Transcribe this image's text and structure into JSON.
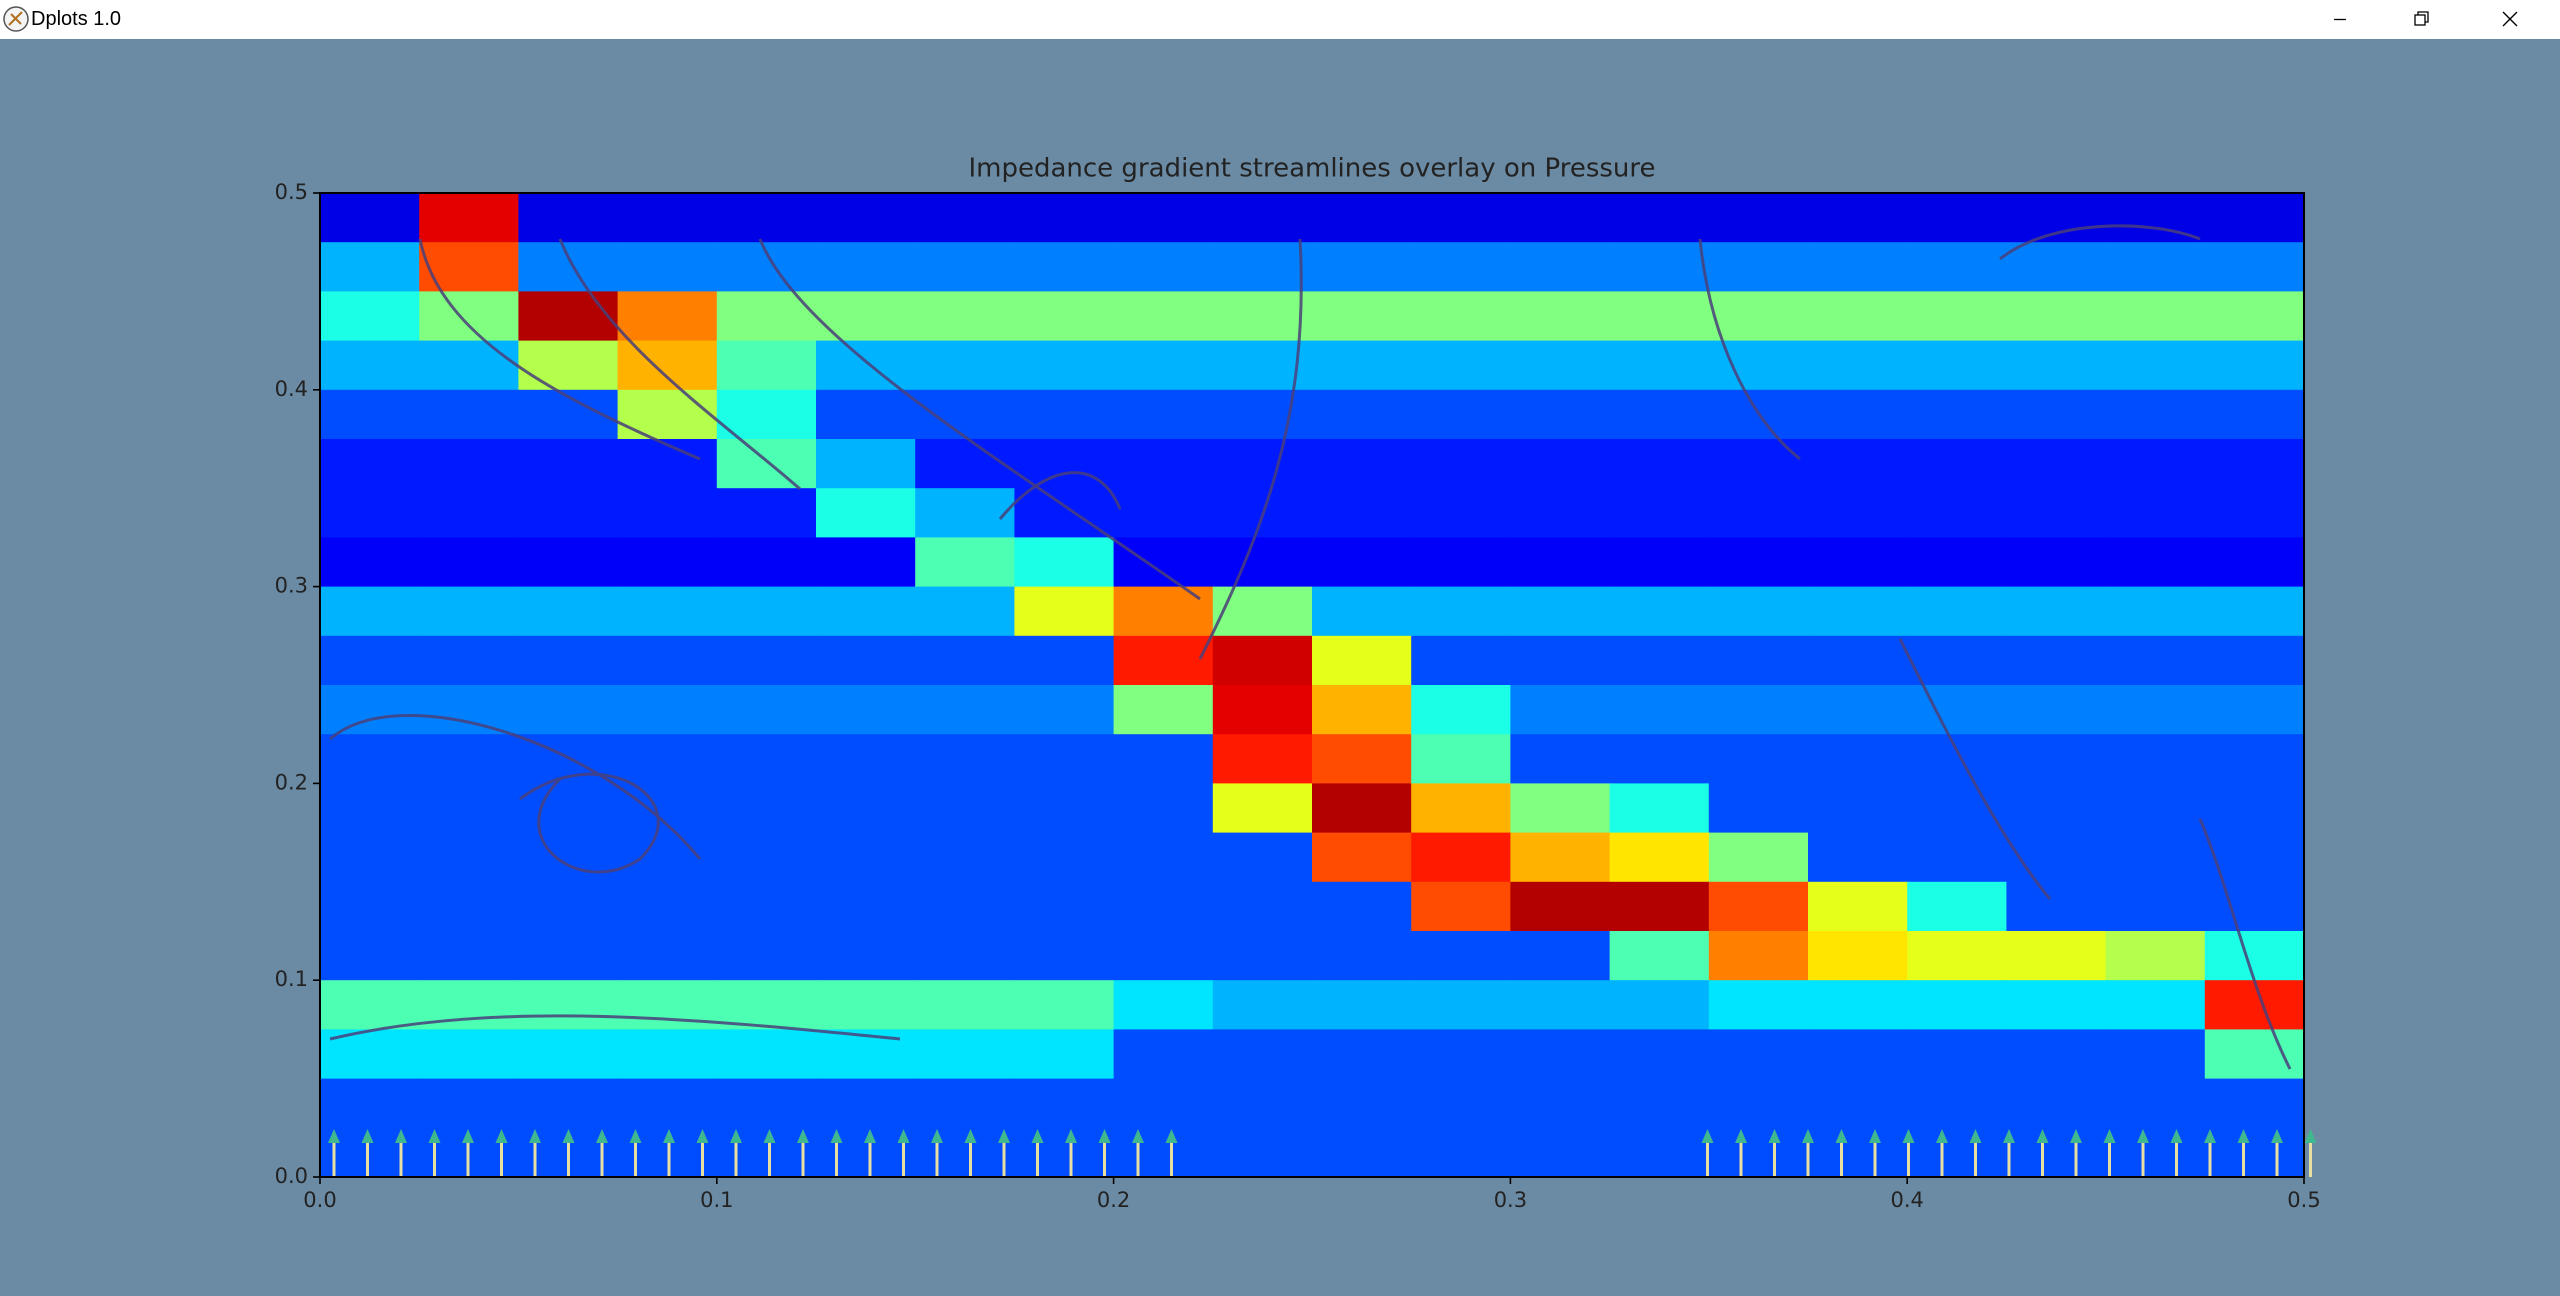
{
  "window": {
    "title": "Dplots 1.0"
  },
  "chart_data": {
    "type": "heatmap",
    "title": "Impedance gradient streamlines overlay on Pressure",
    "xlim": [
      0,
      0.5
    ],
    "ylim": [
      0,
      0.5
    ],
    "xticks": [
      {
        "value": 0,
        "label": "0.0"
      },
      0.1,
      0.2,
      0.3,
      0.4,
      0.5
    ],
    "yticks": [
      {
        "value": 0,
        "label": "0.0"
      },
      0.1,
      0.2,
      0.3,
      0.4,
      0.5
    ],
    "colormap": "jet",
    "z": [
      [
        0.1,
        0.9,
        0.1,
        0.1,
        0.1,
        0.1,
        0.1,
        0.1,
        0.1,
        0.1,
        0.1,
        0.1,
        0.1,
        0.1,
        0.1,
        0.1,
        0.1,
        0.1,
        0.1,
        0.1
      ],
      [
        0.3,
        0.8,
        0.25,
        0.25,
        0.25,
        0.25,
        0.25,
        0.25,
        0.25,
        0.25,
        0.25,
        0.25,
        0.25,
        0.25,
        0.25,
        0.25,
        0.25,
        0.25,
        0.25,
        0.25
      ],
      [
        0.4,
        0.5,
        0.95,
        0.75,
        0.5,
        0.5,
        0.5,
        0.5,
        0.5,
        0.5,
        0.5,
        0.5,
        0.5,
        0.5,
        0.5,
        0.5,
        0.5,
        0.5,
        0.5,
        0.5
      ],
      [
        0.3,
        0.3,
        0.55,
        0.7,
        0.45,
        0.3,
        0.3,
        0.3,
        0.3,
        0.3,
        0.3,
        0.3,
        0.3,
        0.3,
        0.3,
        0.3,
        0.3,
        0.3,
        0.3,
        0.3
      ],
      [
        0.2,
        0.2,
        0.2,
        0.55,
        0.4,
        0.2,
        0.2,
        0.2,
        0.2,
        0.2,
        0.2,
        0.2,
        0.2,
        0.2,
        0.2,
        0.2,
        0.2,
        0.2,
        0.2,
        0.2
      ],
      [
        0.15,
        0.15,
        0.15,
        0.15,
        0.45,
        0.3,
        0.15,
        0.15,
        0.15,
        0.15,
        0.15,
        0.15,
        0.15,
        0.15,
        0.15,
        0.15,
        0.15,
        0.15,
        0.15,
        0.15
      ],
      [
        0.15,
        0.15,
        0.15,
        0.15,
        0.15,
        0.4,
        0.3,
        0.15,
        0.15,
        0.15,
        0.15,
        0.15,
        0.15,
        0.15,
        0.15,
        0.15,
        0.15,
        0.15,
        0.15,
        0.15
      ],
      [
        0.12,
        0.12,
        0.12,
        0.12,
        0.12,
        0.12,
        0.45,
        0.4,
        0.12,
        0.12,
        0.12,
        0.12,
        0.12,
        0.12,
        0.12,
        0.12,
        0.12,
        0.12,
        0.12,
        0.12
      ],
      [
        0.3,
        0.3,
        0.3,
        0.3,
        0.3,
        0.3,
        0.3,
        0.6,
        0.75,
        0.5,
        0.3,
        0.3,
        0.3,
        0.3,
        0.3,
        0.3,
        0.3,
        0.3,
        0.3,
        0.3
      ],
      [
        0.2,
        0.2,
        0.2,
        0.2,
        0.2,
        0.2,
        0.2,
        0.2,
        0.85,
        0.92,
        0.6,
        0.2,
        0.2,
        0.2,
        0.2,
        0.2,
        0.2,
        0.2,
        0.2,
        0.2
      ],
      [
        0.25,
        0.25,
        0.25,
        0.25,
        0.25,
        0.25,
        0.25,
        0.25,
        0.5,
        0.9,
        0.7,
        0.4,
        0.25,
        0.25,
        0.25,
        0.25,
        0.25,
        0.25,
        0.25,
        0.25
      ],
      [
        0.2,
        0.2,
        0.2,
        0.2,
        0.2,
        0.2,
        0.2,
        0.2,
        0.2,
        0.85,
        0.8,
        0.45,
        0.2,
        0.2,
        0.2,
        0.2,
        0.2,
        0.2,
        0.2,
        0.2
      ],
      [
        0.2,
        0.2,
        0.2,
        0.2,
        0.2,
        0.2,
        0.2,
        0.2,
        0.2,
        0.6,
        0.95,
        0.7,
        0.5,
        0.4,
        0.2,
        0.2,
        0.2,
        0.2,
        0.2,
        0.2
      ],
      [
        0.2,
        0.2,
        0.2,
        0.2,
        0.2,
        0.2,
        0.2,
        0.2,
        0.2,
        0.2,
        0.8,
        0.85,
        0.7,
        0.65,
        0.5,
        0.2,
        0.2,
        0.2,
        0.2,
        0.2
      ],
      [
        0.2,
        0.2,
        0.2,
        0.2,
        0.2,
        0.2,
        0.2,
        0.2,
        0.2,
        0.2,
        0.2,
        0.8,
        0.95,
        0.95,
        0.8,
        0.6,
        0.4,
        0.2,
        0.2,
        0.2
      ],
      [
        0.2,
        0.2,
        0.2,
        0.2,
        0.2,
        0.2,
        0.2,
        0.2,
        0.2,
        0.2,
        0.2,
        0.2,
        0.2,
        0.45,
        0.75,
        0.65,
        0.6,
        0.6,
        0.55,
        0.4
      ],
      [
        0.45,
        0.45,
        0.45,
        0.45,
        0.45,
        0.45,
        0.45,
        0.45,
        0.35,
        0.3,
        0.3,
        0.3,
        0.3,
        0.3,
        0.35,
        0.35,
        0.35,
        0.35,
        0.35,
        0.85
      ],
      [
        0.35,
        0.35,
        0.35,
        0.35,
        0.35,
        0.35,
        0.35,
        0.35,
        0.2,
        0.2,
        0.2,
        0.2,
        0.2,
        0.2,
        0.2,
        0.2,
        0.2,
        0.2,
        0.2,
        0.45
      ],
      [
        0.2,
        0.2,
        0.2,
        0.2,
        0.2,
        0.2,
        0.2,
        0.2,
        0.2,
        0.2,
        0.2,
        0.2,
        0.2,
        0.2,
        0.2,
        0.2,
        0.2,
        0.2,
        0.2,
        0.2
      ],
      [
        0.2,
        0.2,
        0.2,
        0.2,
        0.2,
        0.2,
        0.2,
        0.2,
        0.2,
        0.2,
        0.2,
        0.2,
        0.2,
        0.2,
        0.2,
        0.2,
        0.2,
        0.2,
        0.2,
        0.2
      ]
    ]
  }
}
